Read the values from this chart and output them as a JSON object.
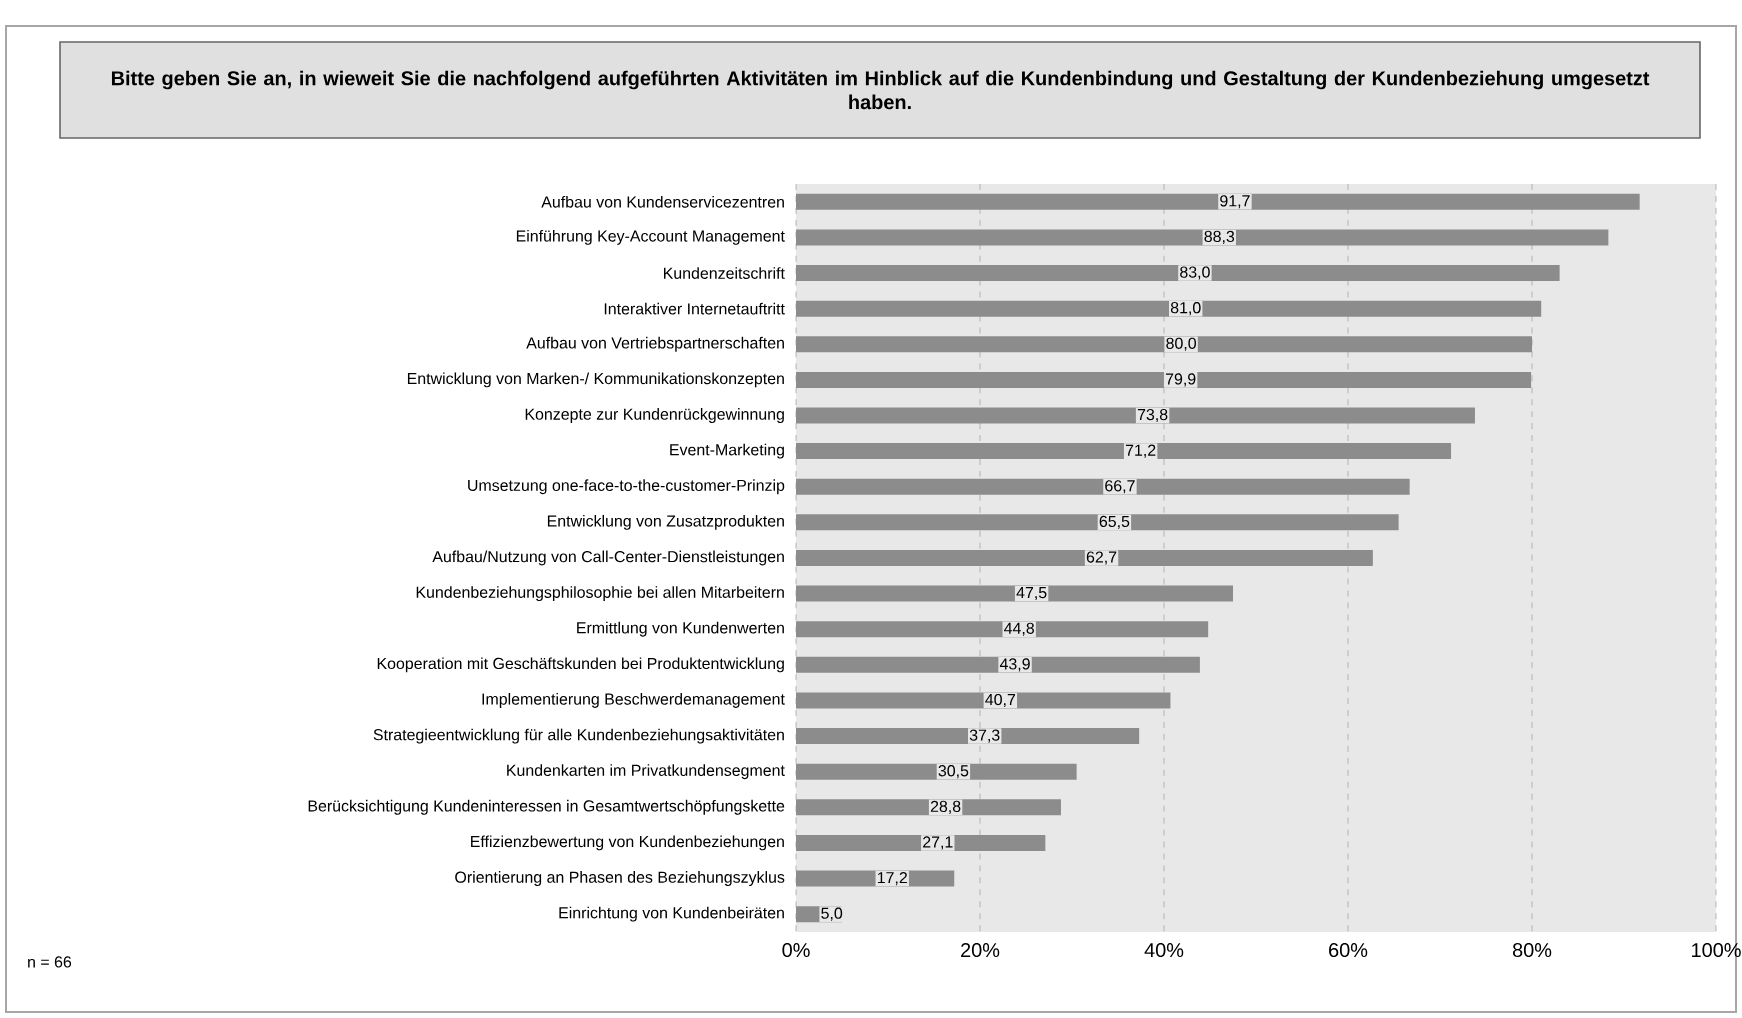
{
  "chart_data": {
    "type": "bar",
    "orientation": "horizontal",
    "title": "Bitte geben Sie an, in wieweit Sie die nachfolgend aufgeführten Aktivitäten im Hinblick auf die Kundenbindung und Gestaltung der Kundenbeziehung umgesetzt haben.",
    "categories": [
      "Aufbau von Kundenservicezentren",
      "Einführung Key-Account Management",
      "Kundenzeitschrift",
      "Interaktiver Internetauftritt",
      "Aufbau von Vertriebspartnerschaften",
      "Entwicklung von Marken-/ Kommunikationskonzepten",
      "Konzepte zur Kundenrückgewinnung",
      "Event-Marketing",
      "Umsetzung one-face-to-the-customer-Prinzip",
      "Entwicklung von Zusatzprodukten",
      "Aufbau/Nutzung von Call-Center-Dienstleistungen",
      "Kundenbeziehungsphilosophie bei allen Mitarbeitern",
      "Ermittlung von Kundenwerten",
      "Kooperation mit Geschäftskunden bei Produktentwicklung",
      "Implementierung Beschwerdemanagement",
      "Strategieentwicklung für alle Kundenbeziehungsaktivitäten",
      "Kundenkarten im Privatkundensegment",
      "Berücksichtigung Kundeninteressen in Gesamtwertschöpfungskette",
      "Effizienzbewertung von Kundenbeziehungen",
      "Orientierung an Phasen des Beziehungszyklus",
      "Einrichtung von Kundenbeiräten"
    ],
    "values": [
      91.7,
      88.3,
      83.0,
      81.0,
      80.0,
      79.9,
      73.8,
      71.2,
      66.7,
      65.5,
      62.7,
      47.5,
      44.8,
      43.9,
      40.7,
      37.3,
      30.5,
      28.8,
      27.1,
      17.2,
      5.0
    ],
    "value_labels": [
      "91,7",
      "88,3",
      "83,0",
      "81,0",
      "80,0",
      "79,9",
      "73,8",
      "71,2",
      "66,7",
      "65,5",
      "62,7",
      "47,5",
      "44,8",
      "43,9",
      "40,7",
      "37,3",
      "30,5",
      "28,8",
      "27,1",
      "17,2",
      "5,0"
    ],
    "color": "#8c8c8c",
    "xlim": [
      0,
      100
    ],
    "xticks": [
      {
        "value": 0,
        "label": "0%"
      },
      {
        "value": 20,
        "label": "20%"
      },
      {
        "value": 40,
        "label": "40%"
      },
      {
        "value": 60,
        "label": "60%"
      },
      {
        "value": 80,
        "label": "80%"
      },
      {
        "value": 100,
        "label": "100%"
      }
    ],
    "grid": "x",
    "annotations": [
      "n = 66"
    ]
  }
}
